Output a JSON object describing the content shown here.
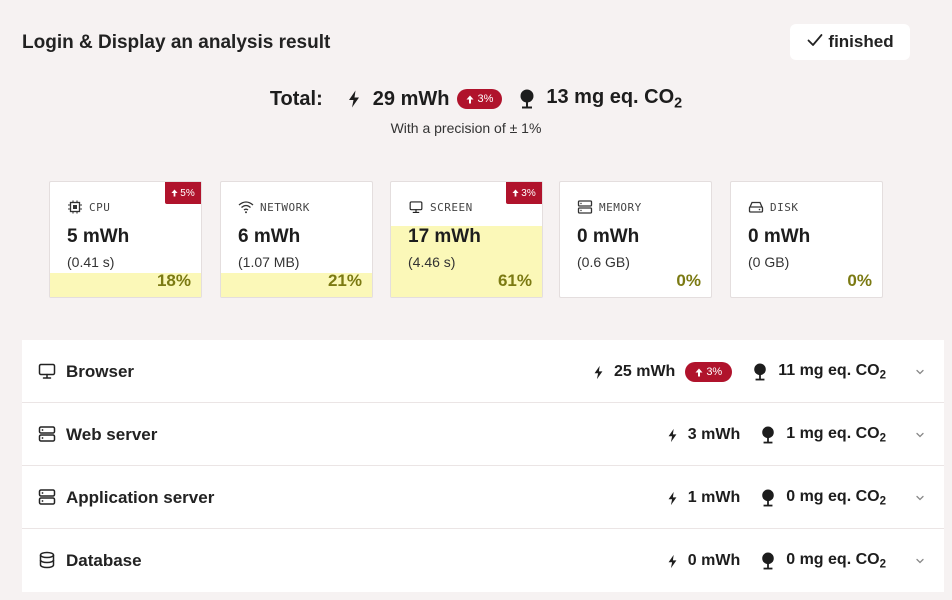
{
  "header": {
    "title": "Login & Display an analysis result",
    "status_label": "finished",
    "status_icon": "check-icon"
  },
  "total": {
    "label": "Total:",
    "energy": "29 mWh",
    "energy_icon": "bolt-icon",
    "trend": "3%",
    "trend_icon": "arrow-up-icon",
    "emissions_prefix": "13 mg eq. CO",
    "emissions_sub": "2",
    "emissions_icon": "tree-icon",
    "precision": "With a precision of ± 1%"
  },
  "colors": {
    "badge": "#b0132c",
    "fill": "#fbf8b8",
    "percent": "#7b7a13",
    "background": "#f6f2f2"
  },
  "cards": [
    {
      "name": "CPU",
      "icon": "cpu-icon",
      "value": "5 mWh",
      "detail": "(0.41 s)",
      "percent": "18%",
      "share": 0.18,
      "trend": "5%"
    },
    {
      "name": "NETWORK",
      "icon": "wifi-icon",
      "value": "6 mWh",
      "detail": "(1.07 MB)",
      "percent": "21%",
      "share": 0.21,
      "trend": ""
    },
    {
      "name": "SCREEN",
      "icon": "monitor-icon",
      "value": "17 mWh",
      "detail": "(4.46 s)",
      "percent": "61%",
      "share": 0.61,
      "trend": "3%"
    },
    {
      "name": "MEMORY",
      "icon": "memory-icon",
      "value": "0 mWh",
      "detail": "(0.6 GB)",
      "percent": "0%",
      "share": 0,
      "trend": ""
    },
    {
      "name": "DISK",
      "icon": "disk-icon",
      "value": "0 mWh",
      "detail": "(0 GB)",
      "percent": "0%",
      "share": 0,
      "trend": ""
    }
  ],
  "rows": [
    {
      "label": "Browser",
      "icon": "monitor-icon",
      "energy": "25 mWh",
      "trend": "3%",
      "emissions": "11 mg eq. CO",
      "sub": "2"
    },
    {
      "label": "Web server",
      "icon": "server-icon",
      "energy": "3 mWh",
      "trend": "",
      "emissions": "1 mg eq. CO",
      "sub": "2"
    },
    {
      "label": "Application server",
      "icon": "server-icon",
      "energy": "1 mWh",
      "trend": "",
      "emissions": "0 mg eq. CO",
      "sub": "2"
    },
    {
      "label": "Database",
      "icon": "database-icon",
      "energy": "0 mWh",
      "trend": "",
      "emissions": "0 mg eq. CO",
      "sub": "2"
    }
  ]
}
